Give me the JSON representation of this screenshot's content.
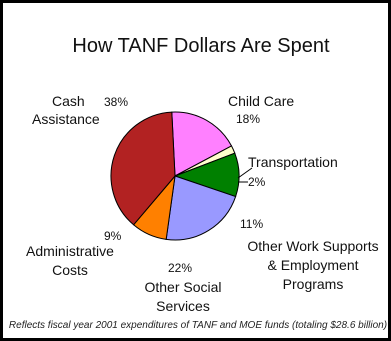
{
  "chart_data": {
    "type": "pie",
    "title": "How TANF Dollars Are Spent",
    "footnote": "Reflects fiscal year 2001 expenditures of TANF and MOE funds (totaling $28.6 billion)",
    "slices": [
      {
        "label": "Child Care",
        "pct_label": "18%",
        "value": 18,
        "color": "#ff80ff"
      },
      {
        "label": "Transportation",
        "pct_label": "2%",
        "value": 2,
        "color": "#ffffcc"
      },
      {
        "label": "Other Work Supports & Employment Programs",
        "pct_label": "11%",
        "value": 11,
        "color": "#008000"
      },
      {
        "label": "Other Social Services",
        "pct_label": "22%",
        "value": 22,
        "color": "#9999ff"
      },
      {
        "label": "Administrative Costs",
        "pct_label": "9%",
        "value": 9,
        "color": "#ff8000"
      },
      {
        "label": "Cash Assistance",
        "pct_label": "38%",
        "value": 38,
        "color": "#b22222"
      }
    ]
  }
}
